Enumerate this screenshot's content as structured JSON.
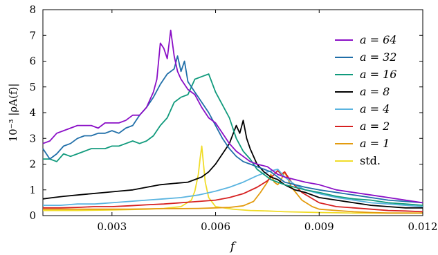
{
  "chart_data": {
    "type": "line",
    "title": "",
    "xlabel": "f",
    "ylabel": "10⁻³ |ρA(f)|",
    "xlim": [
      0.001,
      0.012
    ],
    "ylim": [
      0,
      8
    ],
    "xticks": [
      {
        "value": 0.003,
        "label": "0.003"
      },
      {
        "value": 0.006,
        "label": "0.006"
      },
      {
        "value": 0.009,
        "label": "0.009"
      },
      {
        "value": 0.012,
        "label": "0.012"
      }
    ],
    "yticks": [
      {
        "value": 0,
        "label": "0"
      },
      {
        "value": 1,
        "label": "1"
      },
      {
        "value": 2,
        "label": "2"
      },
      {
        "value": 3,
        "label": "3"
      },
      {
        "value": 4,
        "label": "4"
      },
      {
        "value": 5,
        "label": "5"
      },
      {
        "value": 6,
        "label": "6"
      },
      {
        "value": 7,
        "label": "7"
      },
      {
        "value": 8,
        "label": "8"
      }
    ],
    "grid": false,
    "legend_position": "top-right",
    "series": [
      {
        "name": "a = 64",
        "color": "#8a0ec6",
        "x": [
          0.001,
          0.0012,
          0.0014,
          0.0016,
          0.0018,
          0.002,
          0.0022,
          0.0024,
          0.0026,
          0.0028,
          0.003,
          0.0032,
          0.0034,
          0.0036,
          0.0038,
          0.004,
          0.0042,
          0.0043,
          0.0044,
          0.0045,
          0.0046,
          0.0047,
          0.0048,
          0.0049,
          0.005,
          0.0052,
          0.0054,
          0.0056,
          0.0058,
          0.006,
          0.0062,
          0.0064,
          0.0066,
          0.0068,
          0.007,
          0.0072,
          0.0075,
          0.0078,
          0.008,
          0.0083,
          0.0086,
          0.009,
          0.0095,
          0.01,
          0.0105,
          0.011,
          0.0115,
          0.012
        ],
        "y": [
          2.8,
          2.9,
          3.2,
          3.3,
          3.4,
          3.5,
          3.5,
          3.5,
          3.4,
          3.6,
          3.6,
          3.6,
          3.7,
          3.9,
          3.9,
          4.2,
          4.8,
          5.3,
          6.7,
          6.5,
          6.1,
          7.2,
          6.2,
          5.6,
          5.3,
          4.9,
          4.7,
          4.2,
          3.8,
          3.6,
          3.2,
          2.8,
          2.5,
          2.3,
          2.1,
          2.0,
          1.9,
          1.6,
          1.5,
          1.4,
          1.3,
          1.2,
          1.0,
          0.9,
          0.8,
          0.7,
          0.6,
          0.5
        ]
      },
      {
        "name": "a = 32",
        "color": "#1f6ea8",
        "x": [
          0.001,
          0.0012,
          0.0014,
          0.0016,
          0.0018,
          0.002,
          0.0022,
          0.0024,
          0.0026,
          0.0028,
          0.003,
          0.0032,
          0.0034,
          0.0036,
          0.0038,
          0.004,
          0.0042,
          0.0044,
          0.0046,
          0.0048,
          0.0049,
          0.005,
          0.0051,
          0.0052,
          0.0054,
          0.0056,
          0.0058,
          0.006,
          0.0062,
          0.0064,
          0.0066,
          0.0068,
          0.007,
          0.0072,
          0.0074,
          0.0076,
          0.0078,
          0.008,
          0.0083,
          0.0086,
          0.009,
          0.0095,
          0.01,
          0.0105,
          0.011,
          0.0115,
          0.012
        ],
        "y": [
          2.6,
          2.2,
          2.4,
          2.7,
          2.8,
          3.0,
          3.1,
          3.1,
          3.2,
          3.2,
          3.3,
          3.2,
          3.4,
          3.5,
          3.9,
          4.2,
          4.6,
          5.1,
          5.5,
          5.7,
          6.2,
          5.6,
          6.0,
          5.2,
          4.8,
          4.4,
          4.0,
          3.5,
          3.0,
          2.6,
          2.3,
          2.1,
          2.0,
          1.9,
          1.8,
          1.7,
          1.5,
          1.3,
          1.2,
          1.1,
          1.0,
          0.9,
          0.8,
          0.7,
          0.6,
          0.55,
          0.5
        ]
      },
      {
        "name": "a = 16",
        "color": "#109a7c",
        "x": [
          0.001,
          0.0012,
          0.0014,
          0.0016,
          0.0018,
          0.002,
          0.0022,
          0.0024,
          0.0026,
          0.0028,
          0.003,
          0.0032,
          0.0034,
          0.0036,
          0.0038,
          0.004,
          0.0042,
          0.0044,
          0.0046,
          0.0048,
          0.005,
          0.0052,
          0.0054,
          0.0056,
          0.0058,
          0.006,
          0.0062,
          0.0064,
          0.0066,
          0.0068,
          0.007,
          0.0072,
          0.0074,
          0.0076,
          0.0078,
          0.008,
          0.0083,
          0.0086,
          0.009,
          0.0095,
          0.01,
          0.0105,
          0.011,
          0.0115,
          0.012
        ],
        "y": [
          2.2,
          2.2,
          2.1,
          2.4,
          2.3,
          2.4,
          2.5,
          2.6,
          2.6,
          2.6,
          2.7,
          2.7,
          2.8,
          2.9,
          2.8,
          2.9,
          3.1,
          3.5,
          3.8,
          4.4,
          4.6,
          4.7,
          5.3,
          5.4,
          5.5,
          4.8,
          4.3,
          3.8,
          3.0,
          2.5,
          2.2,
          1.8,
          1.6,
          1.4,
          1.3,
          1.2,
          1.1,
          1.0,
          0.9,
          0.75,
          0.65,
          0.6,
          0.5,
          0.45,
          0.4
        ]
      },
      {
        "name": "a = 8",
        "color": "#000000",
        "x": [
          0.001,
          0.0013,
          0.0016,
          0.002,
          0.0024,
          0.0028,
          0.0032,
          0.0036,
          0.004,
          0.0044,
          0.0048,
          0.0052,
          0.0056,
          0.0058,
          0.006,
          0.0062,
          0.0064,
          0.0066,
          0.0067,
          0.0068,
          0.0069,
          0.007,
          0.0072,
          0.0074,
          0.0076,
          0.0078,
          0.008,
          0.0083,
          0.0086,
          0.009,
          0.0095,
          0.01,
          0.0105,
          0.011,
          0.0115,
          0.012
        ],
        "y": [
          0.65,
          0.7,
          0.75,
          0.8,
          0.85,
          0.9,
          0.95,
          1.0,
          1.1,
          1.2,
          1.25,
          1.3,
          1.5,
          1.7,
          2.0,
          2.4,
          2.8,
          3.5,
          3.2,
          3.7,
          3.0,
          2.6,
          2.0,
          1.7,
          1.5,
          1.4,
          1.2,
          1.0,
          0.9,
          0.7,
          0.6,
          0.5,
          0.4,
          0.35,
          0.3,
          0.3
        ]
      },
      {
        "name": "a = 4",
        "color": "#5ab4e0",
        "x": [
          0.001,
          0.0015,
          0.002,
          0.0025,
          0.003,
          0.0035,
          0.004,
          0.0045,
          0.005,
          0.0055,
          0.006,
          0.0064,
          0.0068,
          0.0072,
          0.0075,
          0.0078,
          0.008,
          0.0083,
          0.0086,
          0.009,
          0.0095,
          0.01,
          0.0105,
          0.011,
          0.0115,
          0.012
        ],
        "y": [
          0.4,
          0.4,
          0.45,
          0.45,
          0.5,
          0.55,
          0.6,
          0.65,
          0.7,
          0.8,
          0.95,
          1.1,
          1.3,
          1.55,
          1.7,
          1.8,
          1.5,
          1.2,
          1.0,
          0.85,
          0.7,
          0.6,
          0.5,
          0.45,
          0.4,
          0.35
        ]
      },
      {
        "name": "a = 2",
        "color": "#d62020",
        "x": [
          0.001,
          0.0015,
          0.002,
          0.0025,
          0.003,
          0.0035,
          0.004,
          0.0045,
          0.005,
          0.0055,
          0.006,
          0.0064,
          0.0068,
          0.0072,
          0.0075,
          0.0077,
          0.0078,
          0.0079,
          0.008,
          0.0082,
          0.0085,
          0.009,
          0.0095,
          0.01,
          0.0105,
          0.011,
          0.0115,
          0.012
        ],
        "y": [
          0.3,
          0.3,
          0.32,
          0.35,
          0.35,
          0.38,
          0.42,
          0.45,
          0.5,
          0.55,
          0.6,
          0.7,
          0.85,
          1.1,
          1.35,
          1.6,
          1.75,
          1.6,
          1.7,
          1.3,
          0.9,
          0.5,
          0.35,
          0.3,
          0.25,
          0.2,
          0.18,
          0.15
        ]
      },
      {
        "name": "a = 1",
        "color": "#e39b0e",
        "x": [
          0.001,
          0.0015,
          0.002,
          0.0025,
          0.003,
          0.0035,
          0.004,
          0.0045,
          0.005,
          0.0055,
          0.006,
          0.0064,
          0.0068,
          0.0071,
          0.0073,
          0.0075,
          0.0076,
          0.0077,
          0.0078,
          0.0079,
          0.008,
          0.0082,
          0.0085,
          0.0088,
          0.009,
          0.0095,
          0.01,
          0.0105,
          0.011,
          0.0115,
          0.012
        ],
        "y": [
          0.25,
          0.25,
          0.25,
          0.25,
          0.25,
          0.25,
          0.26,
          0.27,
          0.27,
          0.28,
          0.3,
          0.32,
          0.38,
          0.55,
          0.9,
          1.3,
          1.6,
          1.3,
          1.2,
          1.4,
          1.7,
          1.1,
          0.6,
          0.35,
          0.25,
          0.2,
          0.15,
          0.12,
          0.1,
          0.1,
          0.1
        ]
      },
      {
        "name": "std.",
        "color": "#f0dc28",
        "x": [
          0.001,
          0.002,
          0.003,
          0.004,
          0.0045,
          0.005,
          0.0053,
          0.0054,
          0.0055,
          0.00555,
          0.0056,
          0.00565,
          0.0057,
          0.0058,
          0.006,
          0.0065,
          0.007,
          0.0075,
          0.008,
          0.009,
          0.01,
          0.011,
          0.012
        ],
        "y": [
          0.2,
          0.2,
          0.22,
          0.25,
          0.28,
          0.35,
          0.6,
          0.95,
          1.6,
          2.2,
          2.7,
          2.0,
          1.3,
          0.7,
          0.35,
          0.25,
          0.2,
          0.18,
          0.15,
          0.12,
          0.1,
          0.1,
          0.1
        ]
      }
    ]
  }
}
